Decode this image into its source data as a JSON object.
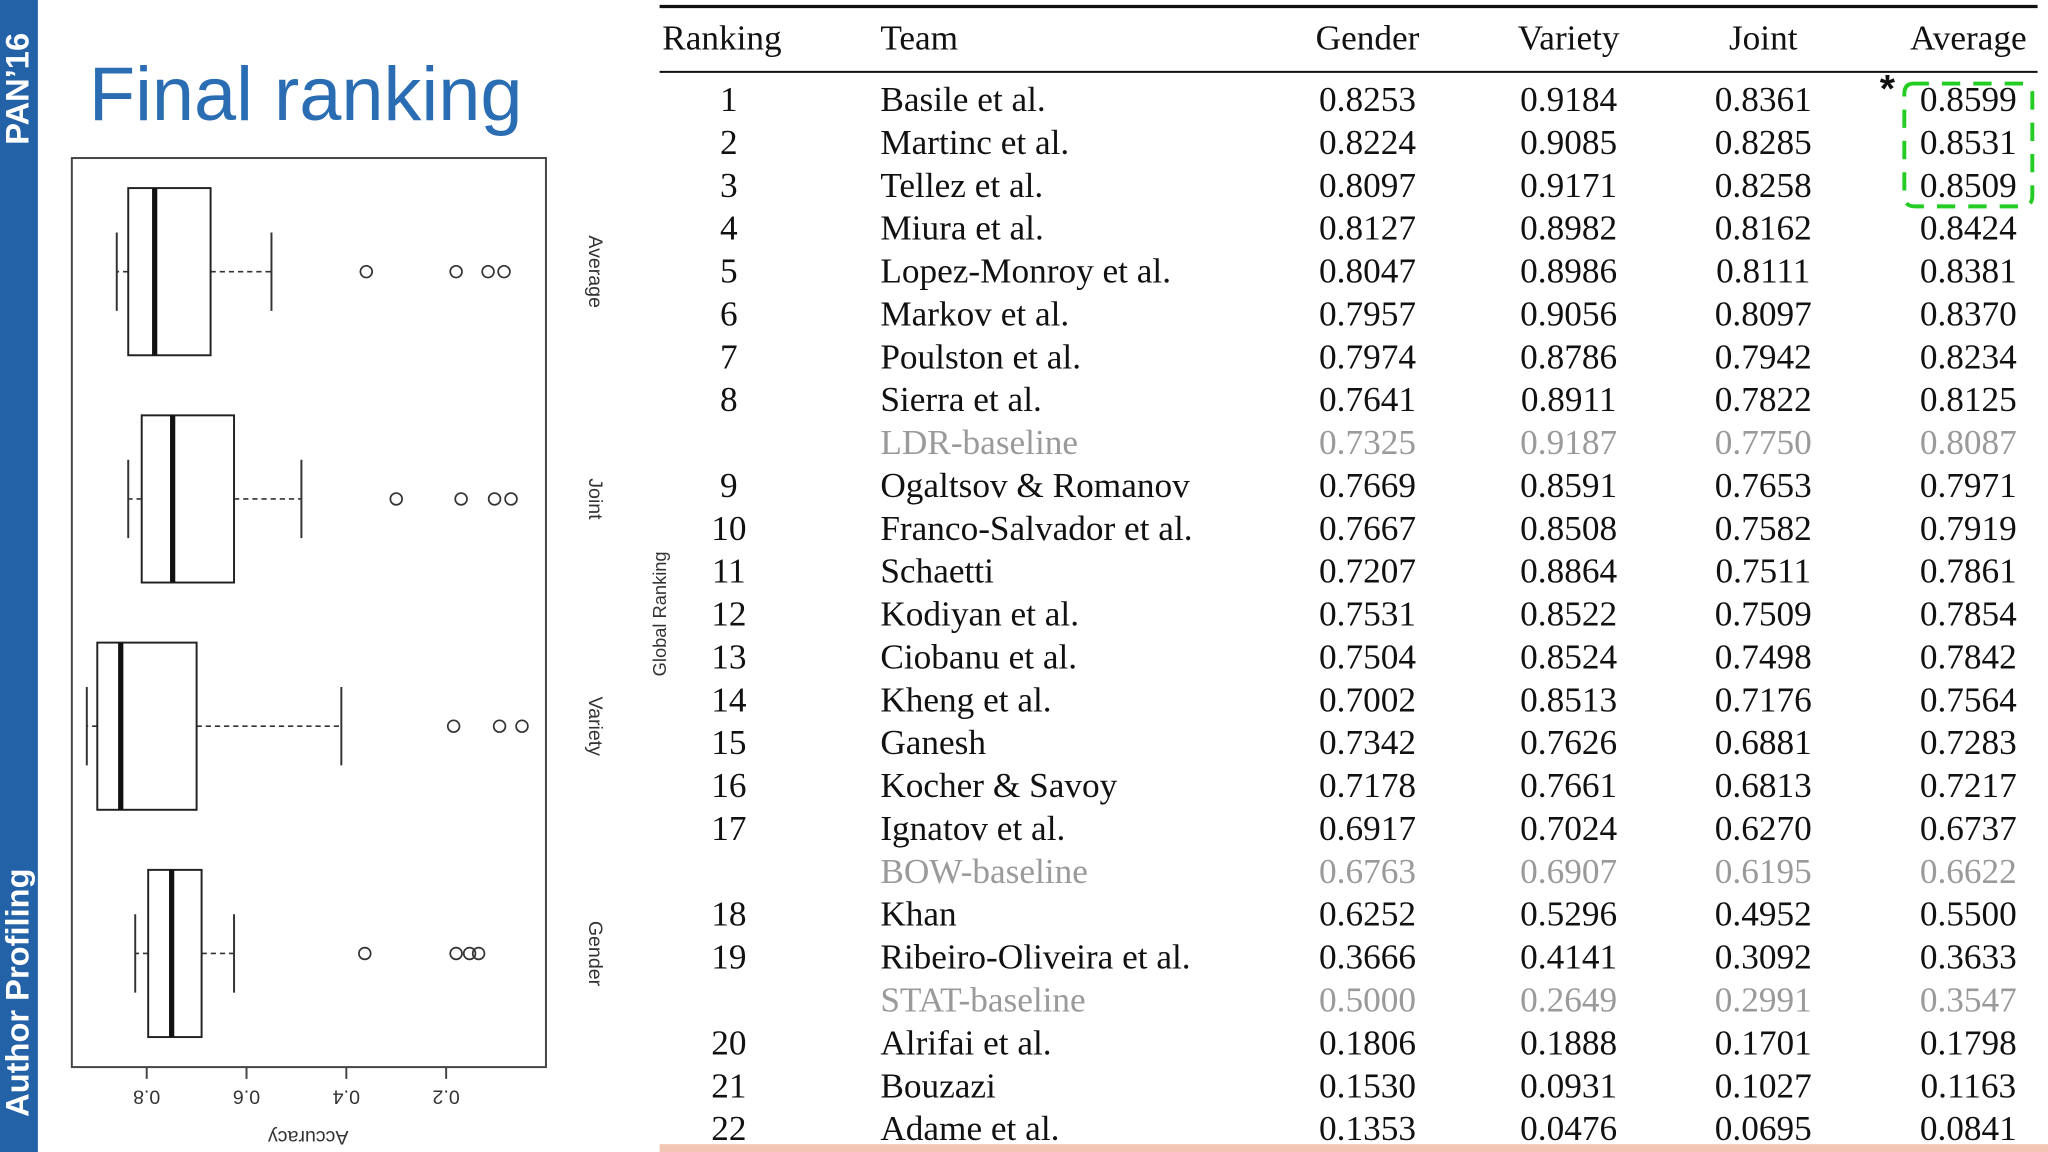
{
  "sidebar": {
    "top": "PAN’16",
    "bottom": "Author Profiling"
  },
  "title": "Final ranking",
  "chart_data": {
    "type": "boxplot",
    "y_label": "Global Ranking",
    "value_label": "Accuracy",
    "categories": [
      "Average",
      "Joint",
      "Variety",
      "Gender"
    ],
    "boxes": [
      {
        "whisker_low": 0.55,
        "q1": 0.672,
        "median": 0.784,
        "q3": 0.837,
        "whisker_high": 0.86,
        "outliers": [
          0.36,
          0.18,
          0.116,
          0.084
        ]
      },
      {
        "whisker_low": 0.49,
        "q1": 0.625,
        "median": 0.748,
        "q3": 0.81,
        "whisker_high": 0.837,
        "outliers": [
          0.3,
          0.17,
          0.103,
          0.07
        ]
      },
      {
        "whisker_low": 0.41,
        "q1": 0.7,
        "median": 0.852,
        "q3": 0.899,
        "whisker_high": 0.92,
        "outliers": [
          0.185,
          0.093,
          0.048
        ]
      },
      {
        "whisker_low": 0.625,
        "q1": 0.69,
        "median": 0.75,
        "q3": 0.797,
        "whisker_high": 0.823,
        "outliers": [
          0.363,
          0.18,
          0.153,
          0.135
        ]
      }
    ],
    "ylim": [
      0,
      0.95
    ],
    "yticks": [
      0.2,
      0.4,
      0.6,
      0.8
    ]
  },
  "table": {
    "header": [
      "Ranking",
      "Team",
      "Gender",
      "Variety",
      "Joint",
      "Average"
    ],
    "rows": [
      {
        "cells": [
          "1",
          "Basile et al.",
          "0.8253",
          "0.9184",
          "0.8361",
          "0.8599"
        ]
      },
      {
        "cells": [
          "2",
          "Martinc et al.",
          "0.8224",
          "0.9085",
          "0.8285",
          "0.8531"
        ]
      },
      {
        "cells": [
          "3",
          "Tellez et al.",
          "0.8097",
          "0.9171",
          "0.8258",
          "0.8509"
        ]
      },
      {
        "cells": [
          "4",
          "Miura et al.",
          "0.8127",
          "0.8982",
          "0.8162",
          "0.8424"
        ]
      },
      {
        "cells": [
          "5",
          "Lopez-Monroy et al.",
          "0.8047",
          "0.8986",
          "0.8111",
          "0.8381"
        ]
      },
      {
        "cells": [
          "6",
          "Markov et al.",
          "0.7957",
          "0.9056",
          "0.8097",
          "0.8370"
        ]
      },
      {
        "cells": [
          "7",
          "Poulston et al.",
          "0.7974",
          "0.8786",
          "0.7942",
          "0.8234"
        ]
      },
      {
        "cells": [
          "8",
          "Sierra et al.",
          "0.7641",
          "0.8911",
          "0.7822",
          "0.8125"
        ]
      },
      {
        "cells": [
          null,
          "LDR-baseline",
          "0.7325",
          "0.9187",
          "0.7750",
          "0.8087"
        ],
        "muted": true
      },
      {
        "cells": [
          "9",
          "Ogaltsov & Romanov",
          "0.7669",
          "0.8591",
          "0.7653",
          "0.7971"
        ]
      },
      {
        "cells": [
          "10",
          "Franco-Salvador et al.",
          "0.7667",
          "0.8508",
          "0.7582",
          "0.7919"
        ]
      },
      {
        "cells": [
          "11",
          "Schaetti",
          "0.7207",
          "0.8864",
          "0.7511",
          "0.7861"
        ]
      },
      {
        "cells": [
          "12",
          "Kodiyan et al.",
          "0.7531",
          "0.8522",
          "0.7509",
          "0.7854"
        ]
      },
      {
        "cells": [
          "13",
          "Ciobanu et al.",
          "0.7504",
          "0.8524",
          "0.7498",
          "0.7842"
        ]
      },
      {
        "cells": [
          "14",
          "Kheng et al.",
          "0.7002",
          "0.8513",
          "0.7176",
          "0.7564"
        ]
      },
      {
        "cells": [
          "15",
          "Ganesh",
          "0.7342",
          "0.7626",
          "0.6881",
          "0.7283"
        ]
      },
      {
        "cells": [
          "16",
          "Kocher & Savoy",
          "0.7178",
          "0.7661",
          "0.6813",
          "0.7217"
        ]
      },
      {
        "cells": [
          "17",
          "Ignatov et al.",
          "0.6917",
          "0.7024",
          "0.6270",
          "0.6737"
        ]
      },
      {
        "cells": [
          null,
          "BOW-baseline",
          "0.6763",
          "0.6907",
          "0.6195",
          "0.6622"
        ],
        "muted": true
      },
      {
        "cells": [
          "18",
          "Khan",
          "0.6252",
          "0.5296",
          "0.4952",
          "0.5500"
        ]
      },
      {
        "cells": [
          "19",
          "Ribeiro-Oliveira et al.",
          "0.3666",
          "0.4141",
          "0.3092",
          "0.3633"
        ]
      },
      {
        "cells": [
          null,
          "STAT-baseline",
          "0.5000",
          "0.2649",
          "0.2991",
          "0.3547"
        ],
        "muted": true
      },
      {
        "cells": [
          "20",
          "Alrifai et al.",
          "0.1806",
          "0.1888",
          "0.1701",
          "0.1798"
        ]
      },
      {
        "cells": [
          "21",
          "Bouzazi",
          "0.1530",
          "0.0931",
          "0.1027",
          "0.1163"
        ]
      },
      {
        "cells": [
          "22",
          "Adame et al.",
          "0.1353",
          "0.0476",
          "0.0695",
          "0.0841"
        ]
      }
    ]
  },
  "annotation": "*"
}
